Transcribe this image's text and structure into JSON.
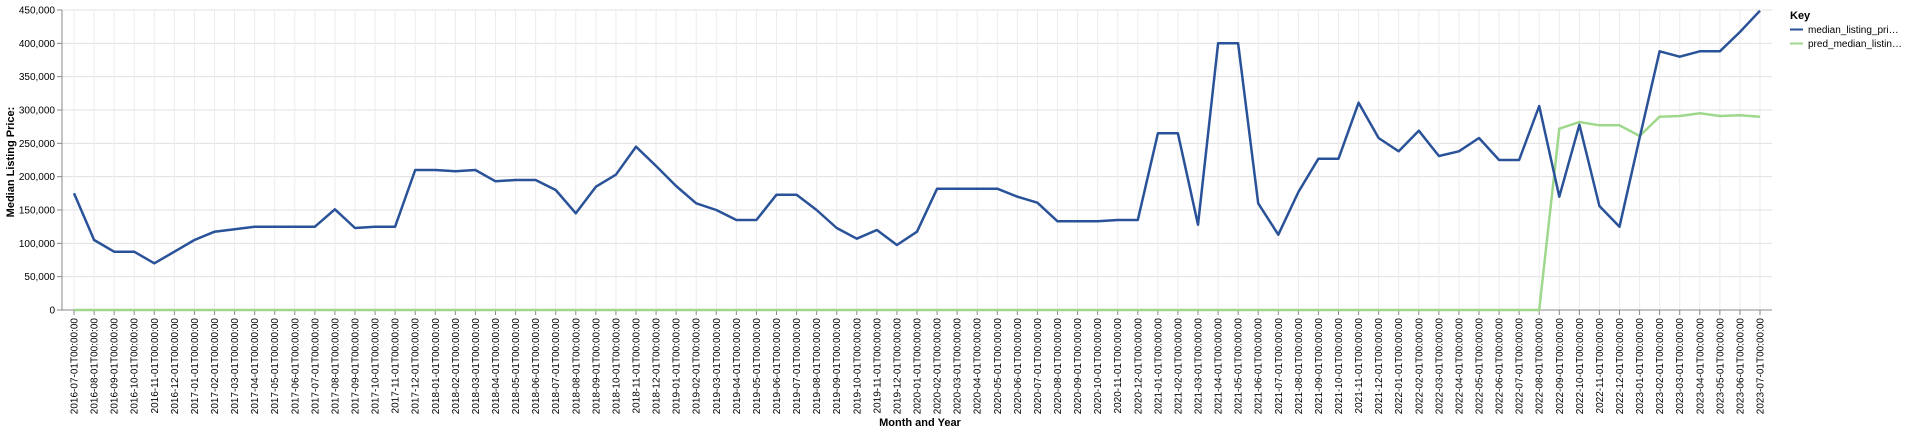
{
  "chart_data": {
    "type": "line",
    "xlabel": "Month and Year",
    "ylabel": "Median Listing Price:",
    "ylim": [
      0,
      450000
    ],
    "y_ticks": [
      "0",
      "50,000",
      "100,000",
      "150,000",
      "200,000",
      "250,000",
      "300,000",
      "350,000",
      "400,000",
      "450,000"
    ],
    "grid": true,
    "legend": {
      "title": "Key",
      "placement": "top-right"
    },
    "x": [
      "2016-07-01T00:00:00",
      "2016-08-01T00:00:00",
      "2016-09-01T00:00:00",
      "2016-10-01T00:00:00",
      "2016-11-01T00:00:00",
      "2016-12-01T00:00:00",
      "2017-01-01T00:00:00",
      "2017-02-01T00:00:00",
      "2017-03-01T00:00:00",
      "2017-04-01T00:00:00",
      "2017-05-01T00:00:00",
      "2017-06-01T00:00:00",
      "2017-07-01T00:00:00",
      "2017-08-01T00:00:00",
      "2017-09-01T00:00:00",
      "2017-10-01T00:00:00",
      "2017-11-01T00:00:00",
      "2017-12-01T00:00:00",
      "2018-01-01T00:00:00",
      "2018-02-01T00:00:00",
      "2018-03-01T00:00:00",
      "2018-04-01T00:00:00",
      "2018-05-01T00:00:00",
      "2018-06-01T00:00:00",
      "2018-07-01T00:00:00",
      "2018-08-01T00:00:00",
      "2018-09-01T00:00:00",
      "2018-10-01T00:00:00",
      "2018-11-01T00:00:00",
      "2018-12-01T00:00:00",
      "2019-01-01T00:00:00",
      "2019-02-01T00:00:00",
      "2019-03-01T00:00:00",
      "2019-04-01T00:00:00",
      "2019-05-01T00:00:00",
      "2019-06-01T00:00:00",
      "2019-07-01T00:00:00",
      "2019-08-01T00:00:00",
      "2019-09-01T00:00:00",
      "2019-10-01T00:00:00",
      "2019-11-01T00:00:00",
      "2019-12-01T00:00:00",
      "2020-01-01T00:00:00",
      "2020-02-01T00:00:00",
      "2020-03-01T00:00:00",
      "2020-04-01T00:00:00",
      "2020-05-01T00:00:00",
      "2020-06-01T00:00:00",
      "2020-07-01T00:00:00",
      "2020-08-01T00:00:00",
      "2020-09-01T00:00:00",
      "2020-10-01T00:00:00",
      "2020-11-01T00:00:00",
      "2020-12-01T00:00:00",
      "2021-01-01T00:00:00",
      "2021-02-01T00:00:00",
      "2021-03-01T00:00:00",
      "2021-04-01T00:00:00",
      "2021-05-01T00:00:00",
      "2021-06-01T00:00:00",
      "2021-07-01T00:00:00",
      "2021-08-01T00:00:00",
      "2021-09-01T00:00:00",
      "2021-10-01T00:00:00",
      "2021-11-01T00:00:00",
      "2021-12-01T00:00:00",
      "2022-01-01T00:00:00",
      "2022-02-01T00:00:00",
      "2022-03-01T00:00:00",
      "2022-04-01T00:00:00",
      "2022-05-01T00:00:00",
      "2022-06-01T00:00:00",
      "2022-07-01T00:00:00",
      "2022-08-01T00:00:00",
      "2022-09-01T00:00:00",
      "2022-10-01T00:00:00",
      "2022-11-01T00:00:00",
      "2022-12-01T00:00:00",
      "2023-01-01T00:00:00",
      "2023-02-01T00:00:00",
      "2023-03-01T00:00:00",
      "2023-04-01T00:00:00",
      "2023-05-01T00:00:00",
      "2023-06-01T00:00:00",
      "2023-07-01T00:00:00"
    ],
    "series": [
      {
        "name": "median_listing_pri…",
        "color": "#2a5298",
        "values": [
          175000,
          105000,
          87500,
          87500,
          70000,
          87500,
          105000,
          117500,
          121000,
          125000,
          125000,
          125000,
          125000,
          151000,
          123000,
          125000,
          125000,
          210000,
          210000,
          208000,
          210000,
          193000,
          195000,
          195000,
          180000,
          145000,
          185000,
          203000,
          245000,
          216000,
          186000,
          160000,
          150000,
          135000,
          135000,
          173000,
          173000,
          150000,
          123000,
          107000,
          120000,
          97500,
          117500,
          182000,
          182000,
          182000,
          182000,
          170000,
          161000,
          133000,
          133000,
          133000,
          135000,
          135000,
          265000,
          265000,
          128000,
          400000,
          400000,
          160000,
          113000,
          177000,
          227000,
          227000,
          311000,
          258000,
          238000,
          269000,
          231000,
          238000,
          258000,
          225000,
          225000,
          306000,
          170000,
          278000,
          156000,
          125000,
          258000,
          388000,
          380000,
          388000,
          388000,
          417000,
          449000
        ]
      },
      {
        "name": "pred_median_listin…",
        "color": "#9fd88c",
        "values": [
          0,
          0,
          0,
          0,
          0,
          0,
          0,
          0,
          0,
          0,
          0,
          0,
          0,
          0,
          0,
          0,
          0,
          0,
          0,
          0,
          0,
          0,
          0,
          0,
          0,
          0,
          0,
          0,
          0,
          0,
          0,
          0,
          0,
          0,
          0,
          0,
          0,
          0,
          0,
          0,
          0,
          0,
          0,
          0,
          0,
          0,
          0,
          0,
          0,
          0,
          0,
          0,
          0,
          0,
          0,
          0,
          0,
          0,
          0,
          0,
          0,
          0,
          0,
          0,
          0,
          0,
          0,
          0,
          0,
          0,
          0,
          0,
          0,
          0,
          272000,
          282000,
          277000,
          277000,
          261000,
          290000,
          291000,
          295000,
          291000,
          292000,
          290000
        ]
      }
    ]
  }
}
